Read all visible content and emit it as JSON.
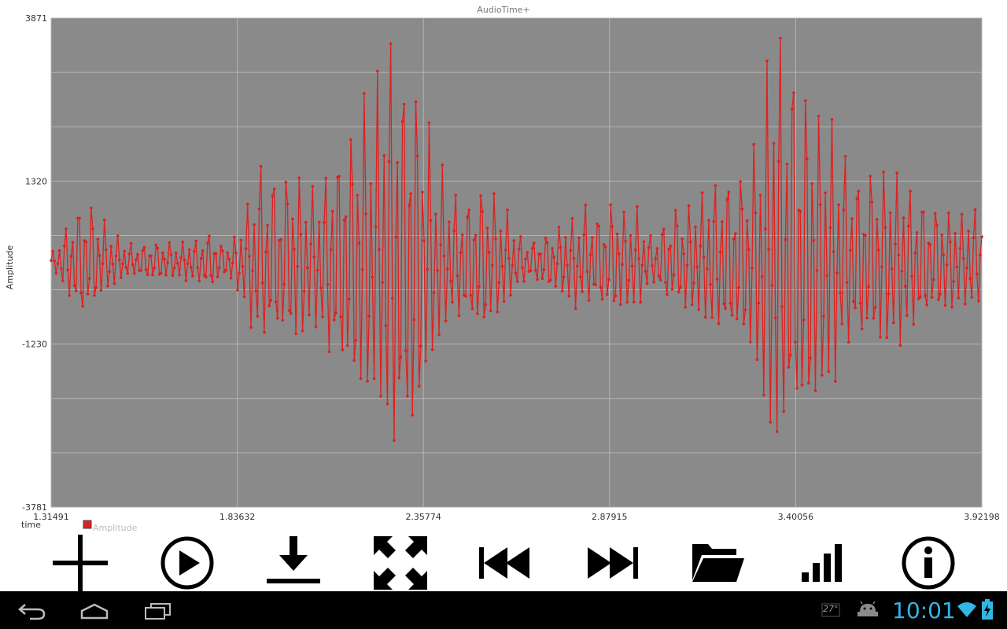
{
  "chart_data": {
    "type": "line",
    "title": "AudioTime+",
    "xlabel": "time",
    "ylabel": "Amplitude",
    "xlim": [
      1.31491,
      3.92198
    ],
    "ylim": [
      -3781,
      3871
    ],
    "x_ticks": [
      "1.31491",
      "1.83632",
      "2.35774",
      "2.87915",
      "3.40056",
      "3.92198"
    ],
    "y_ticks": [
      "3871",
      "1320",
      "-1230",
      "-3781"
    ],
    "grid": true,
    "legend": {
      "position": "bottom-left"
    },
    "series": [
      {
        "name": "Amplitude",
        "color": "#e02020",
        "envelope": {
          "t": [
            1.31491,
            1.36,
            1.4,
            1.44,
            1.5,
            1.55,
            1.6,
            1.65,
            1.7,
            1.75,
            1.8,
            1.83,
            1.87,
            1.9,
            1.95,
            2.0,
            2.05,
            2.1,
            2.15,
            2.2,
            2.25,
            2.28,
            2.3,
            2.33,
            2.36,
            2.4,
            2.45,
            2.5,
            2.55,
            2.6,
            2.65,
            2.7,
            2.75,
            2.8,
            2.85,
            2.9,
            2.95,
            3.0,
            3.05,
            3.1,
            3.15,
            3.2,
            3.25,
            3.3,
            3.35,
            3.4,
            3.45,
            3.5,
            3.55,
            3.6,
            3.65,
            3.7,
            3.75,
            3.8,
            3.85,
            3.92198
          ],
          "amp": [
            100,
            600,
            1100,
            800,
            400,
            250,
            350,
            300,
            350,
            500,
            300,
            400,
            1200,
            1650,
            1350,
            1500,
            1200,
            1700,
            2300,
            2700,
            3200,
            3500,
            3700,
            3600,
            2500,
            1500,
            1100,
            1300,
            1200,
            700,
            300,
            450,
            700,
            900,
            850,
            1000,
            900,
            350,
            800,
            1000,
            1300,
            1350,
            1500,
            2500,
            3871,
            3100,
            2700,
            2400,
            1500,
            1500,
            1600,
            1500,
            1200,
            950,
            900,
            900
          ]
        }
      }
    ]
  },
  "toolbar": {
    "buttons": [
      "add-icon",
      "play-icon",
      "download-icon",
      "fullscreen-icon",
      "skip-back-icon",
      "skip-forward-icon",
      "folder-icon",
      "signal-bars-icon",
      "info-icon"
    ]
  },
  "status_bar": {
    "clock": "10:01",
    "weather": "27°",
    "icons": [
      "weather-icon",
      "android-debug-icon",
      "wifi-icon",
      "battery-icon"
    ]
  },
  "nav_bar": {
    "buttons": [
      "back-icon",
      "home-icon",
      "recent-apps-icon"
    ]
  }
}
